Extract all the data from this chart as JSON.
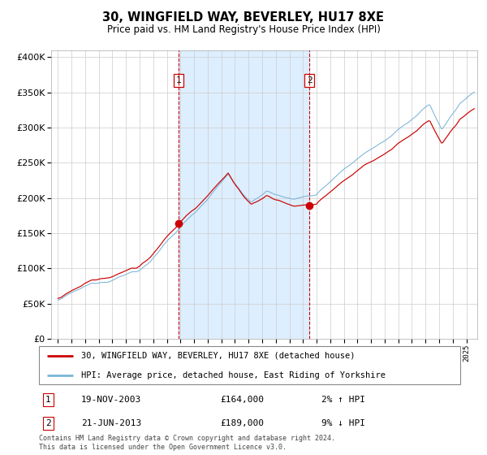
{
  "title": "30, WINGFIELD WAY, BEVERLEY, HU17 8XE",
  "subtitle": "Price paid vs. HM Land Registry's House Price Index (HPI)",
  "purchase1_date": "19-NOV-2003",
  "purchase1_price": 164000,
  "purchase2_date": "21-JUN-2013",
  "purchase2_price": 189000,
  "purchase1_hpi_diff": "2% ↑ HPI",
  "purchase2_hpi_diff": "9% ↓ HPI",
  "legend_line1": "30, WINGFIELD WAY, BEVERLEY, HU17 8XE (detached house)",
  "legend_line2": "HPI: Average price, detached house, East Riding of Yorkshire",
  "footnote": "Contains HM Land Registry data © Crown copyright and database right 2024.\nThis data is licensed under the Open Government Licence v3.0.",
  "hpi_color": "#7ab4d8",
  "price_color": "#cc0000",
  "shade_color": "#ddeeff",
  "vline_color": "#cc0000",
  "grid_color": "#cccccc",
  "bg_color": "#ffffff",
  "purchase1_x": 2003.88,
  "purchase2_x": 2013.47,
  "ylim_min": 0,
  "ylim_max": 410000,
  "xlim_min": 1994.5,
  "xlim_max": 2025.8
}
